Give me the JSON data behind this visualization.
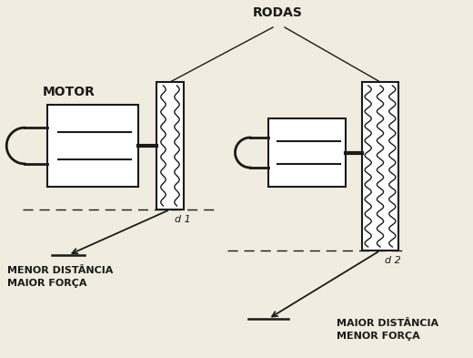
{
  "bg_color": "#f0ede0",
  "line_color": "#1a1a1a",
  "title_label": "RODAS",
  "motor_label": "MOTOR",
  "d1_label": "d 1",
  "d2_label": "d 2",
  "label_left_line1": "MENOR DISTÂNCIA",
  "label_left_line2": "MAIOR FORÇA",
  "label_right_line1": "MAIOR DISTÂNCIA",
  "label_right_line2": "MENOR FORÇA",
  "figsize": [
    5.2,
    3.93
  ],
  "dpi": 100
}
